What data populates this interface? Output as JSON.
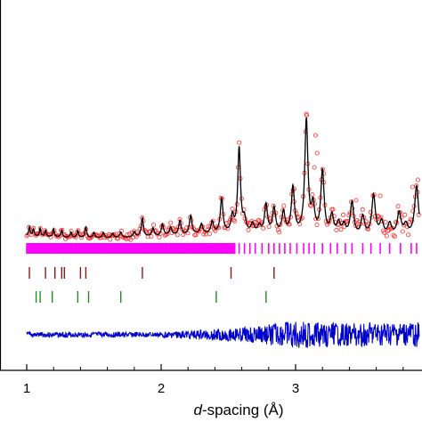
{
  "chart_data": {
    "type": "line",
    "title": "",
    "xlabel_italic": "d",
    "xlabel_rest": "-spacing (Å)",
    "xlim": [
      0.98,
      3.92
    ],
    "x_ticks": [
      {
        "value": 1,
        "label": "1"
      },
      {
        "value": 2,
        "label": "2"
      },
      {
        "value": 3,
        "label": "3"
      }
    ],
    "grid": false,
    "legend": "none",
    "colors": {
      "observed": "#ff2a2a",
      "calculated": "#000000",
      "difference": "#0000cc",
      "phase_1_ticks": "#ff00ff",
      "phase_2_ticks": "#8b1a1a",
      "phase_3_ticks": "#228b22"
    },
    "calculated_peaks": [
      {
        "d": 1.02,
        "h": 10
      },
      {
        "d": 1.05,
        "h": 8
      },
      {
        "d": 1.1,
        "h": 9
      },
      {
        "d": 1.14,
        "h": 7
      },
      {
        "d": 1.2,
        "h": 9
      },
      {
        "d": 1.26,
        "h": 8
      },
      {
        "d": 1.33,
        "h": 6
      },
      {
        "d": 1.38,
        "h": 8
      },
      {
        "d": 1.44,
        "h": 12
      },
      {
        "d": 1.5,
        "h": 6
      },
      {
        "d": 1.57,
        "h": 6
      },
      {
        "d": 1.64,
        "h": 5
      },
      {
        "d": 1.7,
        "h": 6
      },
      {
        "d": 1.8,
        "h": 6
      },
      {
        "d": 1.86,
        "h": 21
      },
      {
        "d": 1.94,
        "h": 9
      },
      {
        "d": 2.01,
        "h": 13
      },
      {
        "d": 2.07,
        "h": 9
      },
      {
        "d": 2.14,
        "h": 16
      },
      {
        "d": 2.22,
        "h": 21
      },
      {
        "d": 2.3,
        "h": 11
      },
      {
        "d": 2.38,
        "h": 13
      },
      {
        "d": 2.45,
        "h": 38
      },
      {
        "d": 2.53,
        "h": 18
      },
      {
        "d": 2.58,
        "h": 95
      },
      {
        "d": 2.62,
        "h": 14
      },
      {
        "d": 2.68,
        "h": 10
      },
      {
        "d": 2.73,
        "h": 8
      },
      {
        "d": 2.78,
        "h": 32
      },
      {
        "d": 2.84,
        "h": 28
      },
      {
        "d": 2.91,
        "h": 24
      },
      {
        "d": 2.98,
        "h": 52
      },
      {
        "d": 3.08,
        "h": 128
      },
      {
        "d": 3.13,
        "h": 30
      },
      {
        "d": 3.2,
        "h": 72
      },
      {
        "d": 3.27,
        "h": 22
      },
      {
        "d": 3.32,
        "h": 14
      },
      {
        "d": 3.36,
        "h": 12
      },
      {
        "d": 3.42,
        "h": 38
      },
      {
        "d": 3.5,
        "h": 22
      },
      {
        "d": 3.58,
        "h": 46
      },
      {
        "d": 3.64,
        "h": 16
      },
      {
        "d": 3.7,
        "h": 14
      },
      {
        "d": 3.77,
        "h": 26
      },
      {
        "d": 3.82,
        "h": 12
      },
      {
        "d": 3.9,
        "h": 56
      }
    ],
    "calculated_background": 5,
    "observed_extra_points": [
      {
        "d": 3.08,
        "h": 142
      },
      {
        "d": 3.15,
        "h": 118
      },
      {
        "d": 3.16,
        "h": 98
      },
      {
        "d": 3.14,
        "h": 82
      },
      {
        "d": 3.87,
        "h": 60
      },
      {
        "d": 3.91,
        "h": 68
      },
      {
        "d": 3.63,
        "h": 50
      },
      {
        "d": 3.45,
        "h": 45
      },
      {
        "d": 3.21,
        "h": 75
      },
      {
        "d": 2.99,
        "h": 58
      }
    ],
    "difference_amplitude": [
      {
        "d": 1.0,
        "a": 3
      },
      {
        "d": 2.0,
        "a": 3
      },
      {
        "d": 2.6,
        "a": 8
      },
      {
        "d": 3.0,
        "a": 16
      },
      {
        "d": 3.3,
        "a": 13
      },
      {
        "d": 3.92,
        "a": 14
      }
    ],
    "phase_1_ticks": {
      "dense_from": 1.0,
      "dense_to": 2.55,
      "dense_step": 0.009,
      "sparse": [
        2.58,
        2.62,
        2.66,
        2.7,
        2.75,
        2.8,
        2.84,
        2.88,
        2.92,
        2.96,
        3.01,
        3.06,
        3.1,
        3.14,
        3.2,
        3.26,
        3.31,
        3.37,
        3.42,
        3.5,
        3.56,
        3.63,
        3.7,
        3.78,
        3.86,
        3.9
      ]
    },
    "phase_2_ticks": [
      1.02,
      1.14,
      1.21,
      1.26,
      1.28,
      1.4,
      1.44,
      1.86,
      2.52,
      2.84
    ],
    "phase_3_ticks": [
      1.07,
      1.1,
      1.19,
      1.38,
      1.46,
      1.7,
      2.41,
      2.78
    ]
  }
}
